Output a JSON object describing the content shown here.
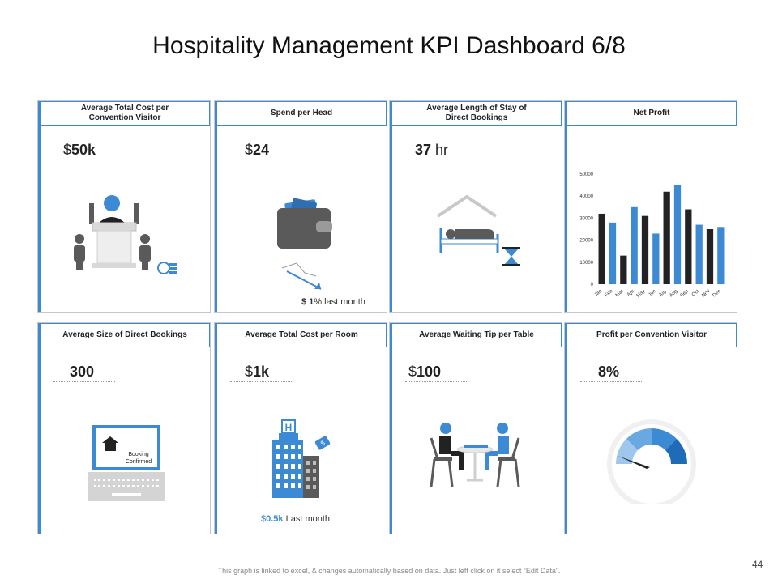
{
  "title": "Hospitality Management KPI Dashboard 6/8",
  "cards": [
    {
      "header": "Average Total Cost per\nConvention Visitor",
      "prefix": "$",
      "value": "50k",
      "suffix": ""
    },
    {
      "header": "Spend per Head",
      "prefix": "$",
      "value": "24",
      "suffix": "",
      "note": {
        "prefix": "$ 1",
        "text": "% last month"
      }
    },
    {
      "header": "Average Length of Stay of\nDirect Bookings",
      "prefix": "",
      "value": "37",
      "suffix": " hr"
    },
    {
      "header": "Net Profit"
    },
    {
      "header": "Average Size of Direct Bookings",
      "prefix": "",
      "value": "300",
      "suffix": "",
      "laptop_text": "Booking\nConfirmed"
    },
    {
      "header": "Average Total Cost per Room",
      "prefix": "$",
      "value": "1k",
      "suffix": "",
      "note": {
        "prefix": "$",
        "bold": "0.5k",
        "text": " Last month"
      }
    },
    {
      "header": "Average Waiting Tip per Table",
      "prefix": "$",
      "value": "100",
      "suffix": ""
    },
    {
      "header": "Profit per Convention Visitor",
      "prefix": "",
      "value": "8%",
      "suffix": "",
      "gauge_fraction": 0.08
    }
  ],
  "chart_data": {
    "type": "bar",
    "categories": [
      "Jan",
      "Feb",
      "Mar",
      "Apr",
      "May",
      "Jun",
      "July",
      "Aug",
      "Sep",
      "Oct",
      "Nov",
      "Dec"
    ],
    "values": [
      32000,
      28000,
      13000,
      35000,
      31000,
      23000,
      42000,
      45000,
      34000,
      27000,
      25000,
      26000
    ],
    "colors": [
      "#222222",
      "#3d8ad4",
      "#222222",
      "#3d8ad4",
      "#222222",
      "#3d8ad4",
      "#222222",
      "#3d8ad4",
      "#222222",
      "#3d8ad4",
      "#222222",
      "#3d8ad4"
    ],
    "yticks": [
      "0",
      "10000",
      "20000",
      "30000",
      "40000",
      "50000"
    ],
    "ylim": [
      0,
      50000
    ],
    "title": "",
    "xlabel": "",
    "ylabel": ""
  },
  "footer": "This graph is linked to excel, & changes automatically based on data. Just left click on it select “Edit Data”.",
  "page_number": "44",
  "colors": {
    "accent": "#3d8ad4",
    "dark": "#222222",
    "grey": "#5a5a5a"
  }
}
